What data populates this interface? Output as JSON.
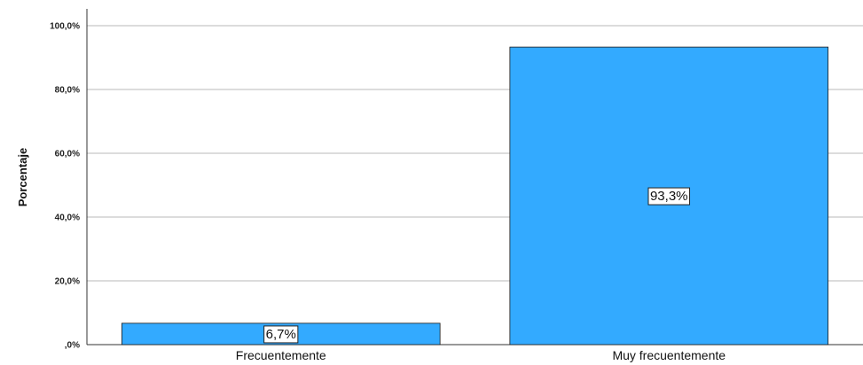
{
  "chart_data": {
    "type": "bar",
    "categories": [
      "Frecuentemente",
      "Muy frecuentemente"
    ],
    "values": [
      6.7,
      93.3
    ],
    "data_labels": [
      "6,7%",
      "93,3%"
    ],
    "ylabel": "Porcentaje",
    "xlabel": "",
    "ylim": [
      0,
      100
    ],
    "yticks": [
      ",0%",
      "20,0%",
      "40,0%",
      "60,0%",
      "80,0%",
      "100,0%"
    ],
    "grid": true,
    "bar_color": "#33AAFF",
    "bar_edge_color": "#1a1a1a"
  }
}
